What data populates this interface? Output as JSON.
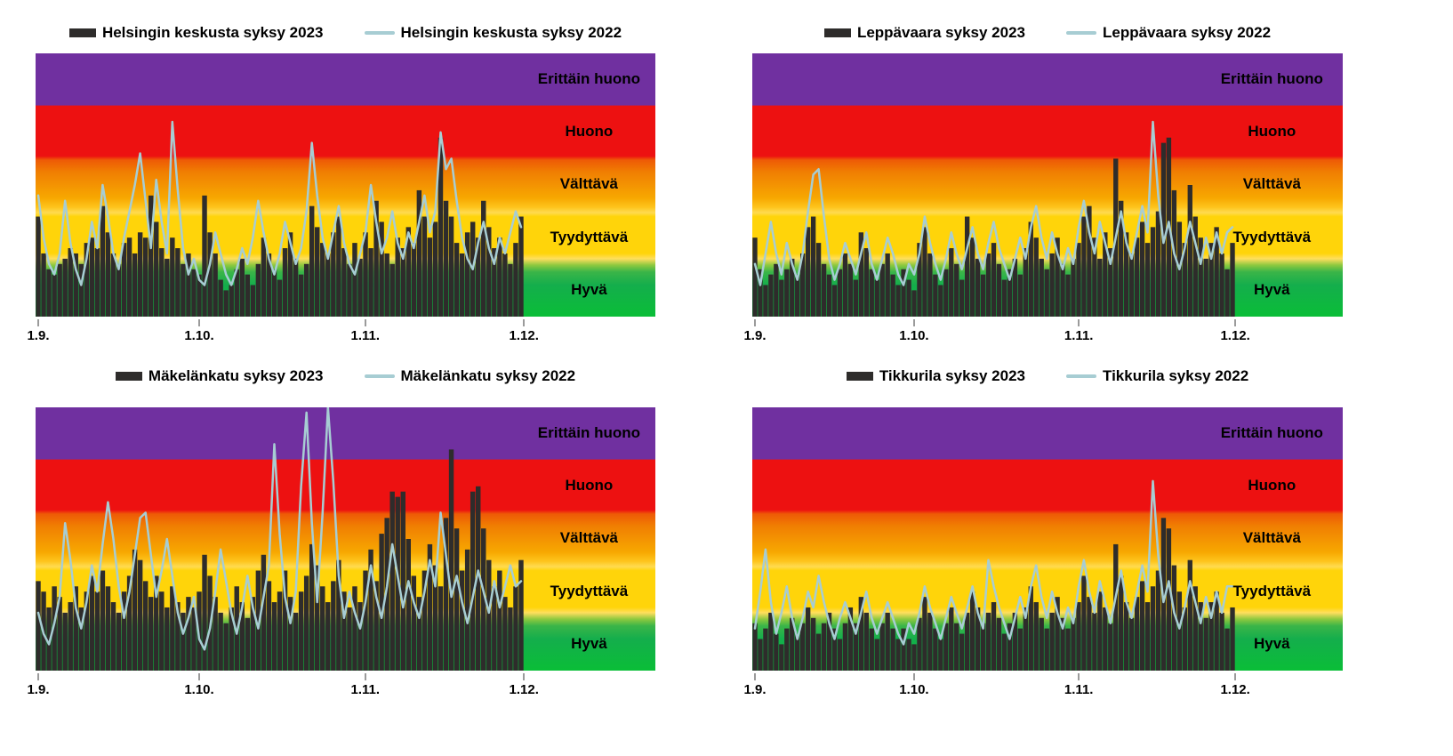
{
  "page": {
    "background": "#FFFFFF"
  },
  "colors": {
    "bar_2023": "#2E2C2B",
    "line_2022": "#A7CDD3",
    "band_purple": "#7030A0",
    "band_red": "#ED1111",
    "band_orange": "#F28C00",
    "band_yellow": "#FFD40A",
    "band_green": "#0FB14A",
    "tick": "#9B9B9B",
    "text": "#000000"
  },
  "band_labels": [
    "Erittäin huono",
    "Huono",
    "Välttävä",
    "Tyydyttävä",
    "Hyvä"
  ],
  "x_axis_labels": [
    "1.9.",
    "1.10.",
    "1.11.",
    "1.12."
  ],
  "value_scale": {
    "min": 0,
    "max": 5,
    "note": "1 unit = one air-quality band (Hyvä 0-1, Tyydyttävä 1-2, Välttävä 2-3, Huono 3-4, Erittäin huono 4-5)"
  },
  "chart_data": [
    {
      "type": "bar",
      "x_ticks": [
        "1.9.",
        "1.10.",
        "1.11.",
        "1.12."
      ],
      "ylim": [
        0,
        5
      ],
      "y_bands": [
        "Hyvä",
        "Tyydyttävä",
        "Välttävä",
        "Huono",
        "Erittäin huono"
      ],
      "legend_position": "top",
      "series": [
        {
          "name": "Helsingin keskusta syksy 2023",
          "type": "bar",
          "values": [
            1.9,
            1.2,
            0.9,
            0.8,
            1.0,
            1.1,
            1.3,
            1.2,
            1.0,
            1.4,
            1.5,
            1.3,
            2.1,
            1.6,
            1.2,
            1.0,
            1.4,
            1.5,
            1.2,
            1.6,
            1.5,
            2.3,
            1.8,
            1.3,
            1.1,
            1.5,
            1.3,
            1.0,
            1.2,
            0.9,
            0.8,
            2.3,
            1.6,
            1.2,
            0.7,
            0.5,
            0.6,
            0.9,
            1.1,
            0.8,
            0.6,
            1.0,
            1.5,
            1.2,
            0.9,
            0.7,
            1.3,
            1.6,
            1.1,
            0.8,
            1.0,
            2.1,
            1.7,
            1.4,
            1.2,
            1.6,
            1.9,
            1.3,
            1.0,
            1.4,
            1.1,
            1.6,
            1.3,
            2.2,
            1.8,
            1.2,
            1.0,
            1.5,
            1.3,
            1.7,
            1.4,
            2.4,
            1.9,
            1.5,
            1.8,
            3.4,
            2.2,
            1.9,
            1.4,
            1.2,
            1.6,
            1.8,
            1.5,
            2.2,
            1.7,
            1.3,
            1.5,
            1.2,
            1.0,
            1.4,
            1.9
          ]
        },
        {
          "name": "Helsingin keskusta syksy 2022",
          "type": "line",
          "values": [
            2.3,
            1.5,
            1.0,
            0.8,
            1.2,
            2.2,
            1.4,
            0.9,
            0.6,
            1.1,
            1.8,
            1.3,
            2.5,
            1.9,
            1.2,
            0.9,
            1.5,
            2.0,
            2.5,
            3.1,
            2.2,
            1.3,
            2.6,
            1.8,
            1.2,
            3.7,
            2.4,
            1.3,
            0.8,
            1.1,
            0.7,
            0.6,
            1.0,
            1.6,
            1.2,
            0.8,
            0.6,
            0.9,
            1.3,
            1.0,
            1.5,
            2.2,
            1.6,
            1.1,
            0.8,
            1.2,
            1.8,
            1.4,
            1.0,
            1.3,
            2.0,
            3.3,
            2.3,
            1.5,
            1.1,
            1.6,
            2.1,
            1.4,
            1.0,
            0.8,
            1.2,
            1.6,
            2.5,
            1.8,
            1.2,
            1.5,
            2.0,
            1.4,
            1.1,
            1.6,
            1.3,
            1.8,
            2.3,
            1.6,
            2.0,
            3.5,
            2.8,
            3.0,
            2.2,
            1.5,
            1.1,
            0.9,
            1.4,
            1.8,
            1.3,
            1.0,
            1.5,
            1.2,
            1.6,
            2.0,
            1.7
          ]
        }
      ]
    },
    {
      "type": "bar",
      "x_ticks": [
        "1.9.",
        "1.10.",
        "1.11.",
        "1.12."
      ],
      "ylim": [
        0,
        5
      ],
      "y_bands": [
        "Hyvä",
        "Tyydyttävä",
        "Välttävä",
        "Huono",
        "Erittäin huono"
      ],
      "legend_position": "top",
      "series": [
        {
          "name": "Leppävaara syksy 2023",
          "type": "bar",
          "values": [
            1.5,
            0.9,
            0.6,
            0.8,
            1.0,
            0.7,
            0.9,
            1.1,
            0.8,
            1.2,
            1.7,
            1.9,
            1.4,
            1.0,
            0.8,
            0.6,
            0.9,
            1.2,
            1.0,
            0.7,
            1.6,
            1.3,
            0.9,
            0.7,
            1.0,
            1.2,
            0.8,
            0.6,
            0.9,
            0.7,
            0.5,
            1.4,
            1.7,
            1.2,
            0.8,
            0.6,
            0.9,
            1.3,
            1.0,
            0.7,
            1.9,
            1.5,
            1.1,
            0.8,
            1.2,
            1.4,
            1.0,
            0.7,
            0.9,
            1.1,
            0.8,
            1.3,
            1.8,
            1.5,
            1.1,
            0.9,
            1.2,
            1.5,
            1.0,
            0.8,
            1.1,
            1.4,
            1.9,
            2.1,
            1.5,
            1.1,
            1.6,
            1.3,
            3.0,
            2.2,
            1.6,
            1.2,
            1.5,
            1.8,
            1.4,
            1.7,
            2.0,
            3.3,
            3.4,
            2.4,
            1.8,
            1.4,
            2.5,
            1.9,
            1.5,
            1.1,
            1.4,
            1.7,
            1.2,
            0.9,
            1.4
          ]
        },
        {
          "name": "Leppävaara syksy 2022",
          "type": "line",
          "values": [
            1.0,
            0.6,
            1.2,
            1.8,
            1.2,
            0.8,
            1.4,
            1.0,
            0.7,
            1.2,
            2.0,
            2.7,
            2.8,
            1.9,
            1.1,
            0.7,
            1.0,
            1.4,
            1.1,
            0.8,
            1.2,
            1.6,
            1.0,
            0.7,
            1.1,
            1.5,
            1.2,
            0.8,
            0.6,
            1.0,
            0.8,
            1.2,
            1.9,
            1.4,
            1.0,
            0.7,
            1.1,
            1.6,
            1.2,
            0.9,
            1.3,
            1.7,
            1.2,
            0.9,
            1.4,
            1.8,
            1.3,
            1.0,
            0.7,
            1.1,
            1.5,
            1.1,
            1.7,
            2.1,
            1.5,
            1.1,
            1.6,
            1.2,
            0.9,
            1.3,
            1.0,
            1.7,
            2.2,
            1.6,
            1.2,
            1.8,
            1.4,
            1.0,
            1.5,
            2.0,
            1.4,
            1.1,
            1.6,
            2.1,
            1.6,
            3.7,
            2.3,
            1.4,
            1.8,
            1.2,
            0.9,
            1.3,
            1.8,
            1.4,
            1.0,
            1.5,
            1.1,
            1.6,
            1.2,
            1.6,
            1.7
          ]
        }
      ]
    },
    {
      "type": "bar",
      "x_ticks": [
        "1.9.",
        "1.10.",
        "1.11.",
        "1.12."
      ],
      "ylim": [
        0,
        5
      ],
      "y_bands": [
        "Hyvä",
        "Tyydyttävä",
        "Välttävä",
        "Huono",
        "Erittäin huono"
      ],
      "legend_position": "top",
      "series": [
        {
          "name": "Mäkelänkatu syksy 2023",
          "type": "bar",
          "values": [
            1.7,
            1.5,
            1.2,
            1.6,
            1.4,
            1.1,
            1.3,
            1.6,
            1.2,
            1.5,
            1.8,
            1.5,
            1.9,
            1.6,
            1.3,
            1.1,
            1.5,
            1.8,
            2.3,
            2.1,
            1.7,
            1.4,
            1.8,
            1.5,
            1.2,
            1.6,
            1.3,
            1.1,
            1.4,
            1.2,
            1.5,
            2.2,
            1.8,
            1.4,
            1.1,
            0.9,
            1.2,
            1.6,
            1.3,
            1.0,
            1.4,
            1.9,
            2.2,
            1.7,
            1.3,
            1.5,
            1.9,
            1.4,
            1.1,
            1.5,
            1.8,
            2.4,
            2.0,
            1.6,
            1.3,
            1.7,
            2.1,
            1.5,
            1.2,
            1.6,
            1.3,
            1.9,
            2.3,
            1.7,
            2.6,
            2.9,
            3.4,
            3.3,
            3.4,
            2.5,
            1.8,
            1.4,
            1.9,
            2.4,
            2.0,
            1.6,
            2.9,
            4.2,
            2.7,
            1.9,
            2.3,
            3.4,
            3.5,
            2.7,
            2.1,
            1.6,
            1.9,
            1.4,
            1.2,
            1.6,
            2.1
          ]
        },
        {
          "name": "Mäkelänkatu syksy 2022",
          "type": "line",
          "values": [
            1.1,
            0.7,
            0.5,
            0.9,
            1.4,
            2.8,
            2.1,
            1.2,
            0.8,
            1.3,
            2.0,
            1.5,
            2.4,
            3.2,
            2.5,
            1.6,
            1.0,
            1.5,
            2.2,
            2.9,
            3.0,
            2.2,
            1.4,
            1.9,
            2.5,
            1.8,
            1.1,
            0.7,
            1.0,
            1.4,
            0.6,
            0.4,
            0.8,
            1.5,
            2.3,
            1.7,
            1.1,
            0.7,
            1.2,
            1.8,
            1.2,
            0.8,
            1.4,
            2.0,
            4.3,
            2.6,
            1.4,
            0.9,
            1.5,
            3.5,
            4.9,
            2.8,
            1.3,
            3.0,
            5.0,
            3.6,
            1.8,
            1.0,
            1.5,
            1.1,
            0.8,
            1.3,
            2.0,
            1.4,
            1.0,
            1.6,
            2.4,
            1.8,
            1.2,
            1.7,
            1.3,
            1.0,
            1.5,
            2.1,
            1.6,
            3.0,
            2.2,
            1.4,
            1.8,
            1.3,
            0.9,
            1.4,
            1.9,
            1.5,
            1.1,
            1.7,
            1.2,
            1.6,
            2.0,
            1.6,
            1.7
          ]
        }
      ]
    },
    {
      "type": "bar",
      "x_ticks": [
        "1.9.",
        "1.10.",
        "1.11.",
        "1.12."
      ],
      "ylim": [
        0,
        5
      ],
      "y_bands": [
        "Hyvä",
        "Tyydyttävä",
        "Välttävä",
        "Huono",
        "Erittäin huono"
      ],
      "legend_position": "top",
      "series": [
        {
          "name": "Tikkurila syksy 2023",
          "type": "bar",
          "values": [
            0.9,
            0.6,
            0.8,
            1.1,
            0.7,
            0.5,
            0.8,
            1.0,
            0.7,
            0.9,
            1.2,
            1.0,
            0.7,
            0.9,
            1.1,
            0.8,
            0.6,
            0.9,
            1.2,
            0.9,
            1.4,
            1.1,
            0.8,
            0.6,
            0.9,
            1.1,
            0.8,
            0.6,
            0.8,
            0.6,
            0.5,
            1.0,
            1.4,
            1.1,
            0.8,
            0.6,
            0.9,
            1.2,
            0.9,
            0.7,
            1.1,
            1.5,
            1.2,
            0.9,
            1.1,
            1.3,
            1.0,
            0.7,
            0.9,
            1.1,
            0.8,
            1.2,
            1.6,
            1.3,
            1.0,
            0.8,
            1.1,
            1.4,
            1.0,
            0.8,
            1.0,
            1.3,
            1.8,
            1.4,
            1.1,
            1.5,
            1.2,
            0.9,
            2.4,
            1.8,
            1.3,
            1.0,
            1.4,
            1.7,
            1.3,
            1.6,
            1.9,
            2.9,
            2.7,
            2.0,
            1.5,
            1.2,
            2.1,
            1.6,
            1.3,
            1.0,
            1.3,
            1.5,
            1.1,
            0.8,
            1.2
          ]
        },
        {
          "name": "Tikkurila syksy 2022",
          "type": "line",
          "values": [
            0.8,
            1.5,
            2.3,
            1.3,
            0.7,
            1.1,
            1.6,
            1.0,
            0.6,
            1.0,
            1.5,
            1.2,
            1.8,
            1.3,
            0.9,
            0.6,
            1.0,
            1.3,
            1.0,
            0.7,
            1.1,
            1.5,
            1.0,
            0.7,
            1.0,
            1.3,
            1.0,
            0.7,
            0.5,
            0.9,
            0.7,
            1.1,
            1.6,
            1.2,
            0.9,
            0.6,
            1.0,
            1.4,
            1.1,
            0.8,
            1.2,
            1.6,
            1.1,
            0.8,
            2.1,
            1.6,
            1.2,
            0.9,
            0.6,
            1.0,
            1.4,
            1.0,
            1.6,
            2.0,
            1.4,
            1.0,
            1.5,
            1.1,
            0.8,
            1.2,
            0.9,
            1.6,
            2.1,
            1.5,
            1.1,
            1.7,
            1.3,
            0.9,
            1.4,
            1.9,
            1.3,
            1.0,
            1.5,
            2.0,
            1.5,
            3.6,
            2.2,
            1.3,
            1.7,
            1.1,
            0.8,
            1.2,
            1.7,
            1.3,
            0.9,
            1.4,
            1.0,
            1.5,
            1.1,
            1.6,
            1.6
          ]
        }
      ]
    }
  ]
}
